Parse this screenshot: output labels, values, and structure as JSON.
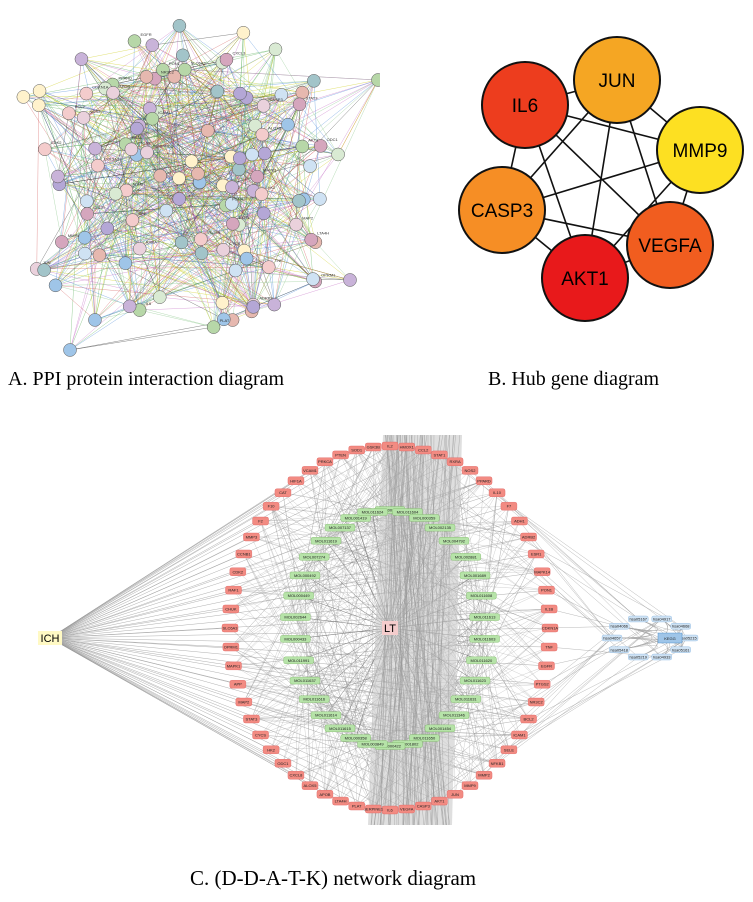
{
  "captions": {
    "a": "A. PPI protein interaction diagram",
    "b": "B. Hub gene diagram",
    "c": "C. (D-D-A-T-K) network diagram"
  },
  "ppi": {
    "labels": [
      "PPARD",
      "HK2",
      "RXRA",
      "OPRM1",
      "PONA",
      "BCL2",
      "ADRB2",
      "NR3C2",
      "SLC6A3",
      "ADH1",
      "MAP2",
      "ODC1",
      "NR3B",
      "CDK2",
      "CASP3",
      "MAPK1",
      "IL6",
      "VEGFA",
      "JUN",
      "MMP9",
      "AKT1",
      "APP",
      "NOS2",
      "CXCL3",
      "PON1",
      "ALOX5",
      "APOB",
      "LTA4H",
      "PLAT",
      "COL3A1",
      "SERPINE1",
      "CCL2",
      "ICAM1",
      "TNF",
      "PTGS2",
      "ESR1",
      "EGFR",
      "CDKN1A",
      "CYCS",
      "STAT3"
    ]
  },
  "hub": {
    "nodes": [
      {
        "label": "JUN",
        "color": "#f5a623"
      },
      {
        "label": "MMP9",
        "color": "#fde022"
      },
      {
        "label": "VEGFA",
        "color": "#f15d1f"
      },
      {
        "label": "AKT1",
        "color": "#e8191b"
      },
      {
        "label": "CASP3",
        "color": "#f68e25"
      },
      {
        "label": "IL6",
        "color": "#ed3d1e"
      }
    ]
  },
  "network": {
    "disease_label": "ICH",
    "center_label": "LT",
    "kegg_label": "KEGG",
    "targets": [
      "IL2",
      "HMOX1",
      "CCL2",
      "STAT1",
      "RXRA",
      "NOS2",
      "PPARD",
      "IL10",
      "F7",
      "ADH1",
      "ADRB2",
      "ESR1",
      "MAPK14",
      "PON1",
      "IL1B",
      "CDKN1A",
      "TNF",
      "EGFR",
      "PTGS2",
      "NR3C2",
      "BCL2",
      "ICAM1",
      "SELE",
      "NFKB1",
      "MMP2",
      "MMP9",
      "JUN",
      "AKT1",
      "CASP3",
      "VEGFA",
      "IL6",
      "SERPINE1",
      "PLAT",
      "LTA4H",
      "APOB",
      "ALOX5",
      "CXCL8",
      "ODC1",
      "HK2",
      "CYCS",
      "STAT3",
      "MAP2",
      "APP",
      "MAPK1",
      "OPRM1",
      "SLC6A3",
      "CHUK",
      "RAF1",
      "CDK2",
      "CCNB1",
      "MMP3",
      "F2",
      "F10",
      "CAT",
      "HIF1A",
      "VCAM1",
      "PRKCA",
      "PTEN",
      "SOD1",
      "GSK3B"
    ],
    "compounds": [
      "MOL001942",
      "MOL011604",
      "MOL000359",
      "MOL002135",
      "MOL004792",
      "MOL002881",
      "MOL001689",
      "MOL011608",
      "MOL011613",
      "MOL011603",
      "MOL011620",
      "MOL011623",
      "MOL011631",
      "MOL011346",
      "MOL001454",
      "MOL011650",
      "MOL001802",
      "MOL000422",
      "MOL003849",
      "MOL000358",
      "MOL011615",
      "MOL011614",
      "MOL011616",
      "MOL011637",
      "MOL011991",
      "MOL000433",
      "MOL002644",
      "MOL000449",
      "MOL000492",
      "MOL007274",
      "MOL011619",
      "MOL007137",
      "MOL001419",
      "MOL011624"
    ],
    "pathways": [
      "hsa05215",
      "hsa05161",
      "hsa04933",
      "hsa05219",
      "hsa05418",
      "hsa04657",
      "hsa04066",
      "hsa05167",
      "hsa04917",
      "hsa04668"
    ]
  }
}
